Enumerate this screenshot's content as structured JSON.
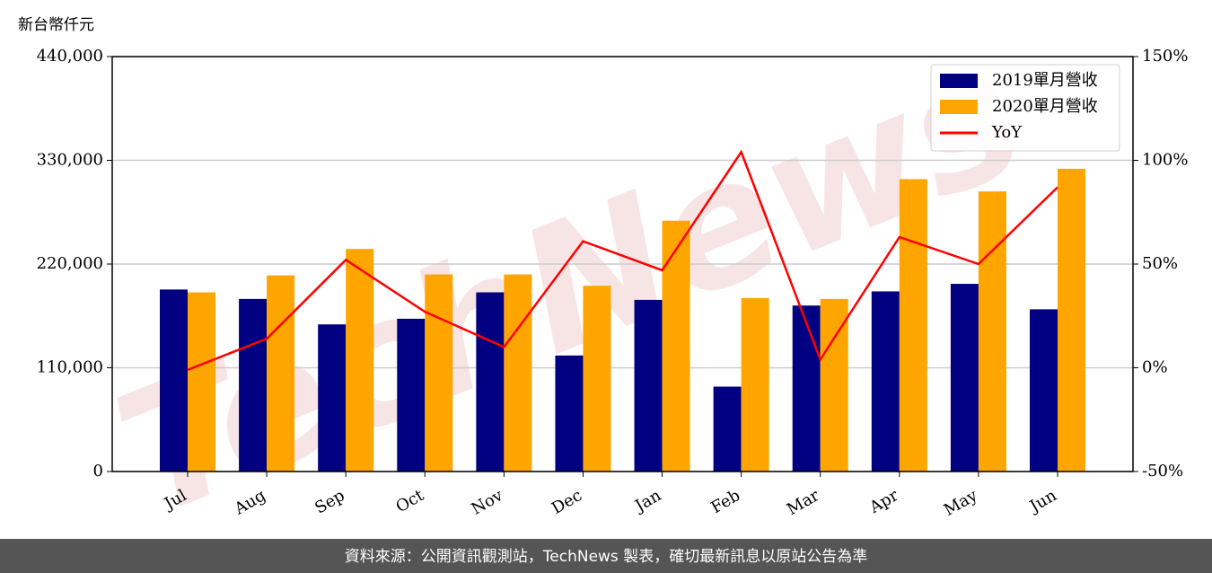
{
  "chart_data": {
    "type": "bar-line",
    "y_label": "新台幣仟元",
    "categories": [
      "Jul",
      "Aug",
      "Sep",
      "Oct",
      "Nov",
      "Dec",
      "Jan",
      "Feb",
      "Mar",
      "Apr",
      "May",
      "Jun"
    ],
    "series": [
      {
        "name": "2019單月營收",
        "color": "#000080",
        "values": [
          193000,
          183000,
          156000,
          162000,
          190000,
          123000,
          182000,
          90000,
          176000,
          191000,
          199000,
          172000
        ]
      },
      {
        "name": "2020單月營收",
        "color": "#ffa500",
        "values": [
          190000,
          208000,
          236000,
          209000,
          209000,
          197000,
          266000,
          184000,
          183000,
          310000,
          297000,
          321000
        ]
      },
      {
        "name": "YoY",
        "color": "#ff0000",
        "type": "line",
        "axis": "y2",
        "values": [
          -1,
          14,
          52,
          27,
          10,
          61,
          47,
          104,
          4,
          63,
          50,
          87
        ]
      }
    ],
    "ylim": [
      0,
      440000
    ],
    "yticks": [
      0,
      {
        "value": 110000,
        "label": "110,000"
      },
      {
        "value": 220000,
        "label": "220,000"
      },
      {
        "value": 330000,
        "label": "330,000"
      },
      {
        "value": 440000,
        "label": "440,000"
      }
    ],
    "y2lim": [
      -50,
      150
    ],
    "y2ticks": [
      {
        "value": -50,
        "label": "-50%"
      },
      {
        "value": 0,
        "label": "0%"
      },
      {
        "value": 50,
        "label": "50%"
      },
      {
        "value": 100,
        "label": "100%"
      },
      {
        "value": 150,
        "label": "150%"
      }
    ],
    "grid": true,
    "legend": "upper right",
    "watermark": "TechNews"
  },
  "footer": "資料來源：公開資訊觀測站，TechNews 製表，確切最新訊息以原站公告為準"
}
